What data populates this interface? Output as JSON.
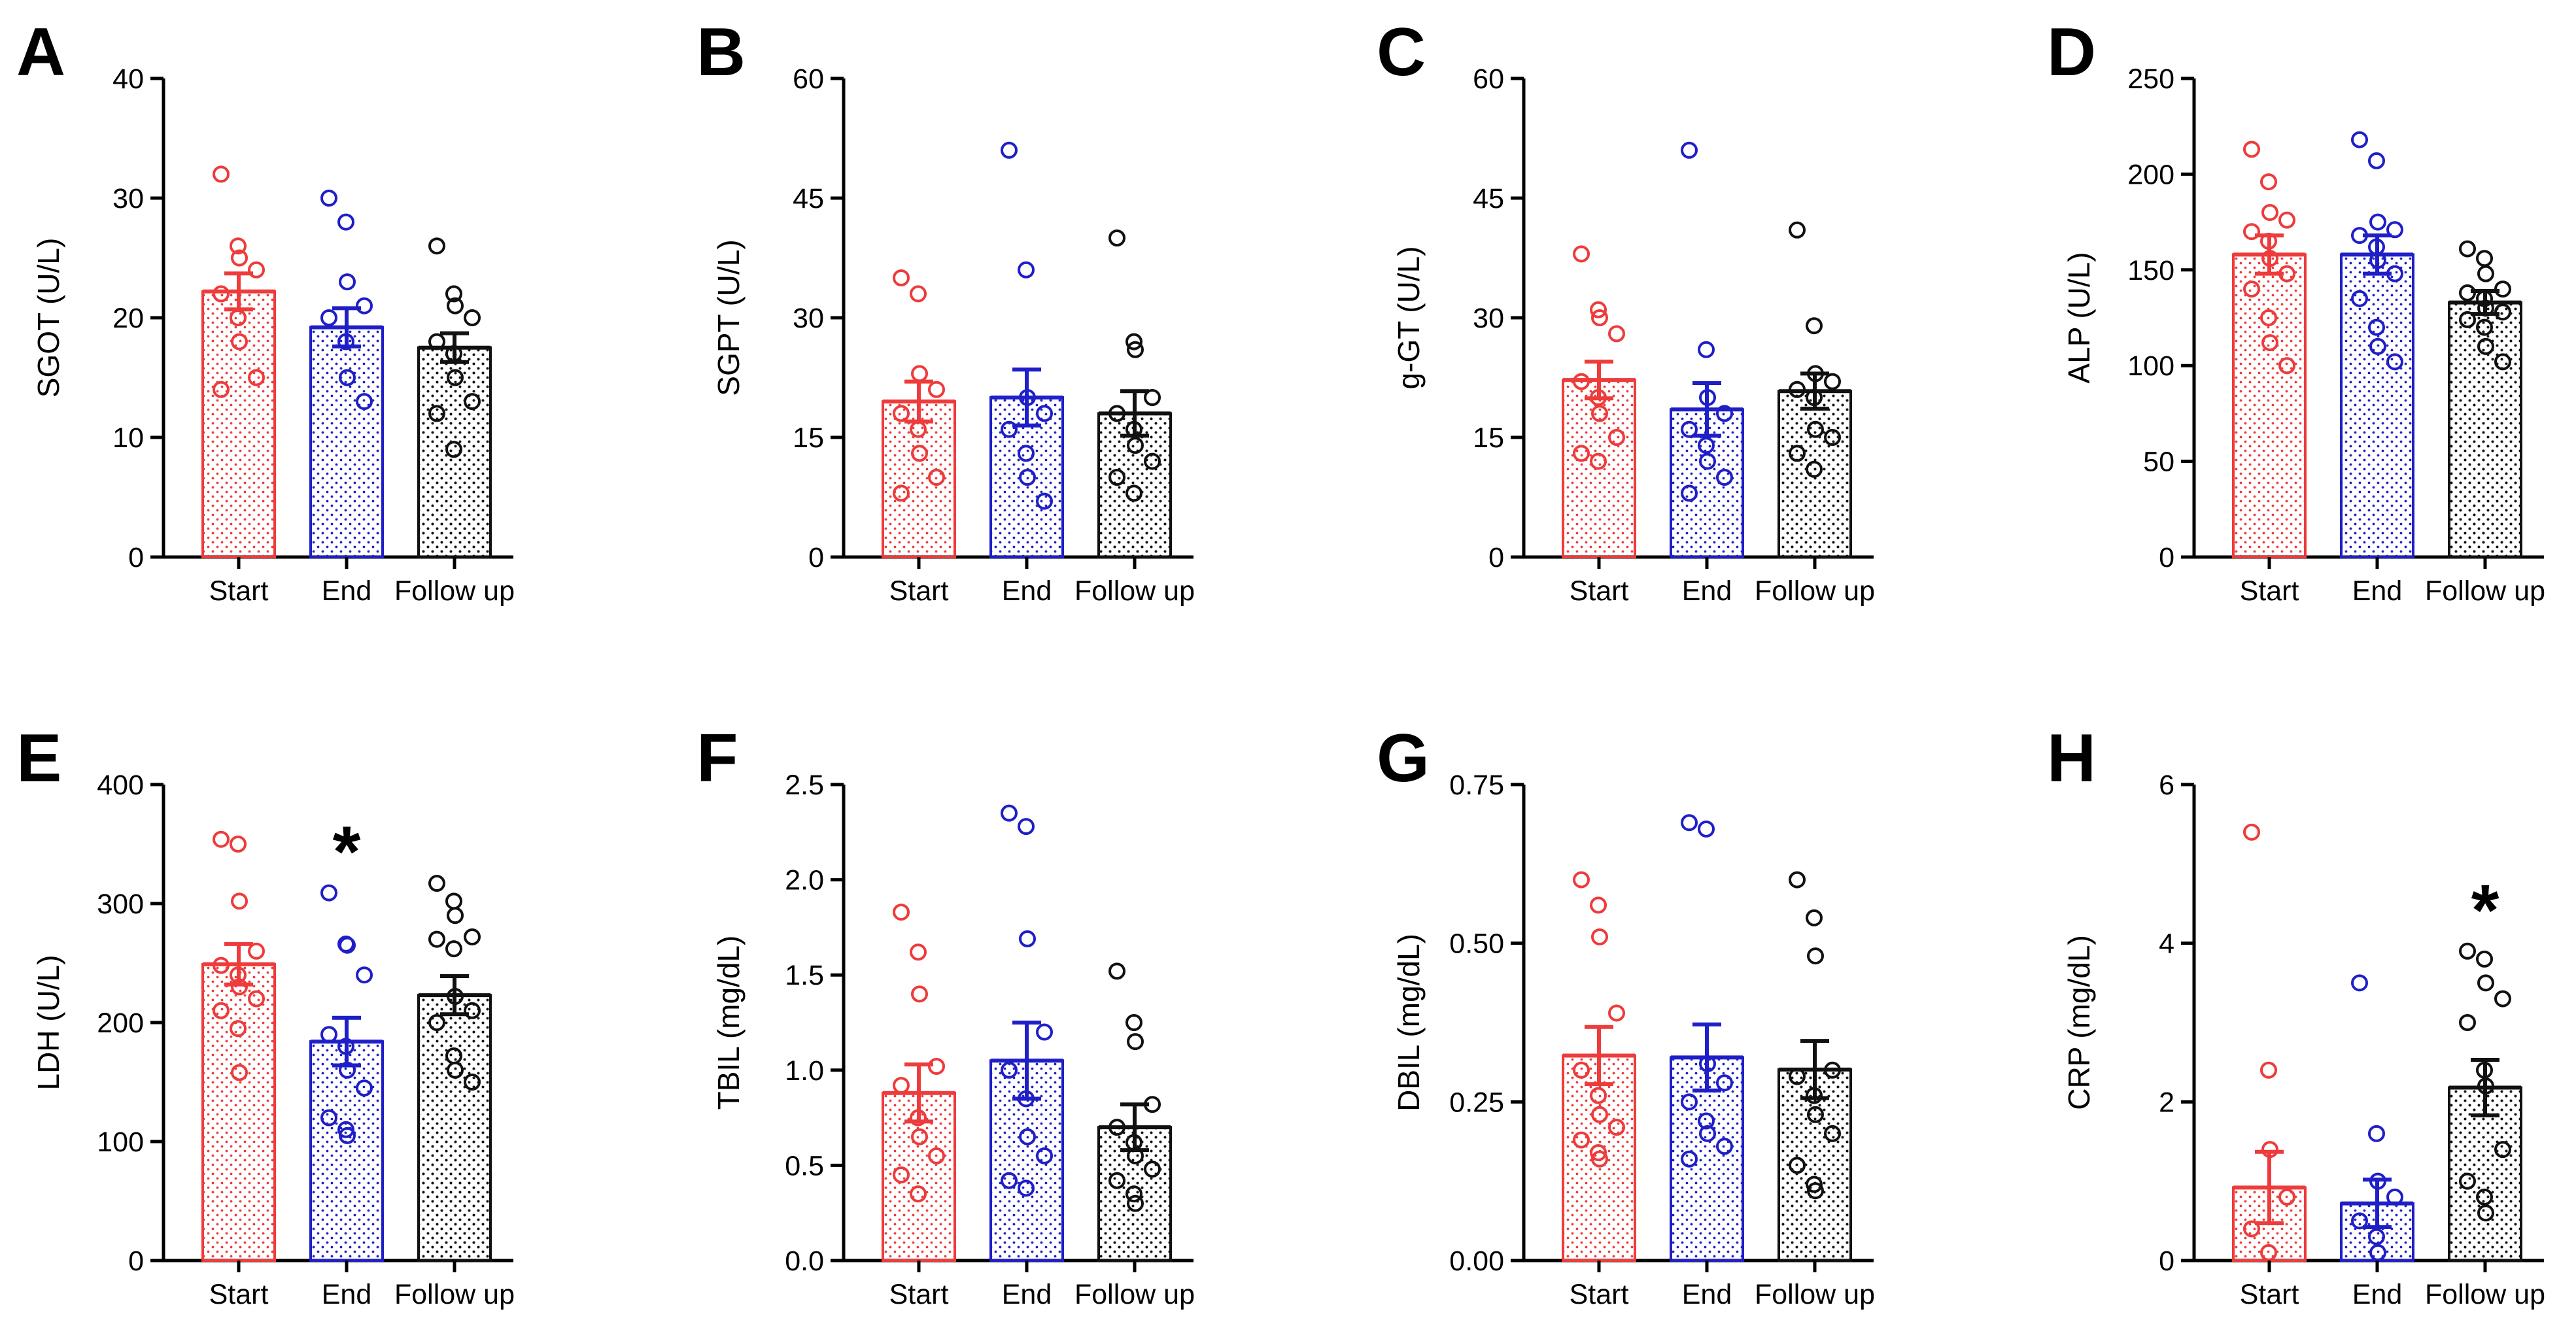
{
  "figure": {
    "categories": [
      "Start",
      "End",
      "Follow up"
    ],
    "colors": {
      "start": "#ee3b3b",
      "end": "#1f1fc8",
      "follow": "#111111"
    },
    "significance_symbol": "*"
  },
  "chart_data": [
    {
      "panel": "A",
      "type": "bar",
      "ylabel": "SGOT (U/L)",
      "ylim": [
        0,
        40
      ],
      "yticks": [
        "0",
        "10",
        "20",
        "30",
        "40"
      ],
      "categories": [
        "Start",
        "End",
        "Follow up"
      ],
      "means": [
        22.2,
        19.2,
        17.5
      ],
      "sem": [
        1.5,
        1.6,
        1.2
      ],
      "points": [
        [
          32,
          26,
          25,
          24,
          22,
          20,
          18,
          15,
          14
        ],
        [
          30,
          28,
          23,
          21,
          20,
          18,
          15,
          13
        ],
        [
          26,
          22,
          21,
          20,
          18,
          17,
          15,
          13,
          12,
          9
        ]
      ],
      "significant": [
        false,
        false,
        false
      ]
    },
    {
      "panel": "B",
      "type": "bar",
      "ylabel": "SGPT (U/L)",
      "ylim": [
        0,
        60
      ],
      "yticks": [
        "0",
        "15",
        "30",
        "45",
        "60"
      ],
      "categories": [
        "Start",
        "End",
        "Follow up"
      ],
      "means": [
        19.5,
        20.0,
        18.0
      ],
      "sem": [
        2.5,
        3.5,
        2.8
      ],
      "points": [
        [
          35,
          33,
          23,
          21,
          18,
          16,
          13,
          10,
          8
        ],
        [
          51,
          36,
          20,
          18,
          16,
          13,
          10,
          7
        ],
        [
          40,
          27,
          26,
          20,
          18,
          16,
          14,
          12,
          10,
          8
        ]
      ],
      "significant": [
        false,
        false,
        false
      ]
    },
    {
      "panel": "C",
      "type": "bar",
      "ylabel": "g-GT (U/L)",
      "ylim": [
        0,
        60
      ],
      "yticks": [
        "0",
        "15",
        "30",
        "45",
        "60"
      ],
      "categories": [
        "Start",
        "End",
        "Follow up"
      ],
      "means": [
        22.2,
        18.5,
        20.8
      ],
      "sem": [
        2.3,
        3.3,
        2.2
      ],
      "points": [
        [
          38,
          31,
          30,
          28,
          22,
          20,
          18,
          15,
          13,
          12
        ],
        [
          51,
          26,
          20,
          18,
          16,
          14,
          12,
          10,
          8
        ],
        [
          41,
          29,
          23,
          22,
          21,
          20,
          16,
          15,
          13,
          11
        ]
      ],
      "significant": [
        false,
        false,
        false
      ]
    },
    {
      "panel": "D",
      "type": "bar",
      "ylabel": "ALP (U/L)",
      "ylim": [
        0,
        250
      ],
      "yticks": [
        "0",
        "50",
        "100",
        "150",
        "200",
        "250"
      ],
      "categories": [
        "Start",
        "End",
        "Follow up"
      ],
      "means": [
        158,
        158,
        133
      ],
      "sem": [
        10,
        10,
        6
      ],
      "points": [
        [
          213,
          196,
          180,
          176,
          170,
          165,
          156,
          148,
          140,
          125,
          112,
          100
        ],
        [
          218,
          207,
          175,
          171,
          168,
          162,
          155,
          148,
          135,
          120,
          110,
          102
        ],
        [
          161,
          156,
          148,
          140,
          138,
          135,
          130,
          128,
          124,
          120,
          110,
          102
        ]
      ],
      "significant": [
        false,
        false,
        false
      ]
    },
    {
      "panel": "E",
      "type": "bar",
      "ylabel": "LDH (U/L)",
      "ylim": [
        0,
        400
      ],
      "yticks": [
        "0",
        "100",
        "200",
        "300",
        "400"
      ],
      "categories": [
        "Start",
        "End",
        "Follow up"
      ],
      "means": [
        249,
        184,
        223
      ],
      "sem": [
        17,
        20,
        16
      ],
      "points": [
        [
          354,
          350,
          302,
          260,
          248,
          240,
          230,
          220,
          210,
          195,
          158
        ],
        [
          309,
          266,
          265,
          240,
          190,
          180,
          160,
          145,
          120,
          110,
          105
        ],
        [
          317,
          302,
          290,
          272,
          270,
          262,
          222,
          210,
          200,
          172,
          160,
          150
        ]
      ],
      "significant": [
        false,
        true,
        false
      ]
    },
    {
      "panel": "F",
      "type": "bar",
      "ylabel": "TBIL (mg/dL)",
      "ylim": [
        0,
        2.5
      ],
      "yticks": [
        "0.0",
        "0.5",
        "1.0",
        "1.5",
        "2.0",
        "2.5"
      ],
      "categories": [
        "Start",
        "End",
        "Follow up"
      ],
      "means": [
        0.88,
        1.05,
        0.7
      ],
      "sem": [
        0.15,
        0.2,
        0.12
      ],
      "points": [
        [
          1.83,
          1.62,
          1.4,
          1.02,
          0.92,
          0.75,
          0.65,
          0.55,
          0.45,
          0.35
        ],
        [
          2.35,
          2.28,
          1.69,
          1.2,
          1.0,
          0.85,
          0.65,
          0.55,
          0.42,
          0.38
        ],
        [
          1.52,
          1.25,
          1.15,
          0.82,
          0.7,
          0.62,
          0.55,
          0.48,
          0.42,
          0.35,
          0.3
        ]
      ],
      "significant": [
        false,
        false,
        false
      ]
    },
    {
      "panel": "G",
      "type": "bar",
      "ylabel": "DBIL (mg/dL)",
      "ylim": [
        0,
        0.75
      ],
      "yticks": [
        "0.00",
        "0.25",
        "0.50",
        "0.75"
      ],
      "categories": [
        "Start",
        "End",
        "Follow up"
      ],
      "means": [
        0.323,
        0.32,
        0.301
      ],
      "sem": [
        0.045,
        0.052,
        0.045
      ],
      "points": [
        [
          0.6,
          0.56,
          0.51,
          0.39,
          0.3,
          0.26,
          0.23,
          0.21,
          0.19,
          0.17,
          0.16
        ],
        [
          0.69,
          0.68,
          0.31,
          0.28,
          0.25,
          0.22,
          0.2,
          0.18,
          0.16
        ],
        [
          0.6,
          0.54,
          0.48,
          0.3,
          0.29,
          0.26,
          0.23,
          0.2,
          0.15,
          0.12,
          0.11
        ]
      ],
      "significant": [
        false,
        false,
        false
      ]
    },
    {
      "panel": "H",
      "type": "bar",
      "ylabel": "CRP (mg/dL)",
      "ylim": [
        0,
        6
      ],
      "yticks": [
        "0",
        "2",
        "4",
        "6"
      ],
      "categories": [
        "Start",
        "End",
        "Follow up"
      ],
      "means": [
        0.92,
        0.72,
        2.18
      ],
      "sem": [
        0.45,
        0.3,
        0.35
      ],
      "points": [
        [
          5.4,
          2.4,
          1.4,
          0.8,
          0.4,
          0.1
        ],
        [
          3.5,
          1.6,
          1.0,
          0.8,
          0.5,
          0.3,
          0.1
        ],
        [
          3.9,
          3.8,
          3.5,
          3.3,
          3.0,
          2.4,
          2.2,
          1.4,
          1.0,
          0.8,
          0.6
        ]
      ],
      "significant": [
        false,
        false,
        true
      ]
    }
  ]
}
